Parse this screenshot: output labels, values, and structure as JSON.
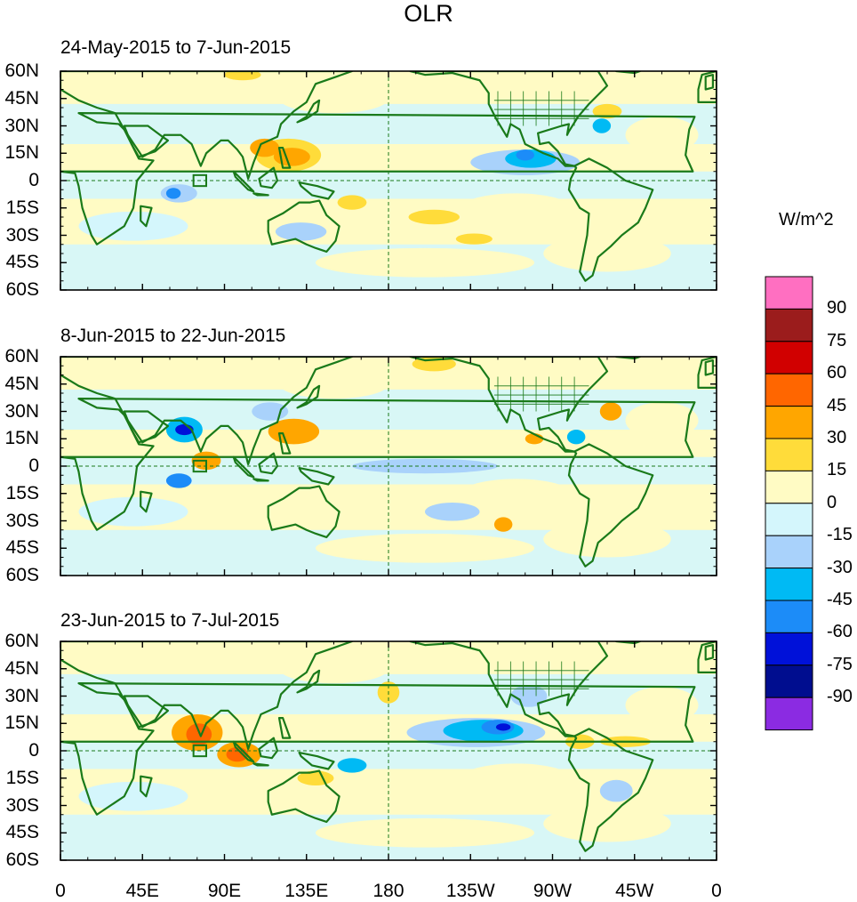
{
  "title": "OLR",
  "panels": [
    {
      "label": "24-May-2015 to 7-Jun-2015"
    },
    {
      "label": "8-Jun-2015 to 22-Jun-2015"
    },
    {
      "label": "23-Jun-2015 to 7-Jul-2015"
    }
  ],
  "lat_labels": [
    "60N",
    "45N",
    "30N",
    "15N",
    "0",
    "15S",
    "30S",
    "45S",
    "60S"
  ],
  "lon_labels": [
    "0",
    "45E",
    "90E",
    "135E",
    "180",
    "135W",
    "90W",
    "45W",
    "0"
  ],
  "colorbar": {
    "title": "W/m^2",
    "levels": [
      "90",
      "75",
      "60",
      "45",
      "30",
      "15",
      "0",
      "-15",
      "-30",
      "-45",
      "-60",
      "-75",
      "-90"
    ],
    "colors": [
      "#ff6fc1",
      "#9b1c1c",
      "#d10000",
      "#ff6600",
      "#ffa600",
      "#ffdc3a",
      "#fffbc4",
      "#d4f6fc",
      "#a9d2fb",
      "#00baf4",
      "#1c8cf8",
      "#0011d9",
      "#000d8f",
      "#8b2be2"
    ]
  },
  "map": {
    "coast_color": "#1a7a1a",
    "lat_range": [
      -60,
      60
    ],
    "lon_range": [
      0,
      360
    ]
  },
  "anomalies": [
    [
      {
        "lon": 125,
        "lat": 14,
        "rx": 18,
        "ry": 9,
        "c": "#ffdc3a"
      },
      {
        "lon": 127,
        "lat": 13,
        "rx": 10,
        "ry": 5,
        "c": "#ffa600"
      },
      {
        "lon": 112,
        "lat": 18,
        "rx": 8,
        "ry": 5,
        "c": "#ffa600"
      },
      {
        "lon": 160,
        "lat": -12,
        "rx": 8,
        "ry": 4,
        "c": "#ffdc3a"
      },
      {
        "lon": 205,
        "lat": -20,
        "rx": 14,
        "ry": 4,
        "c": "#ffdc3a"
      },
      {
        "lon": 227,
        "lat": -32,
        "rx": 10,
        "ry": 3,
        "c": "#ffdc3a"
      },
      {
        "lon": 65,
        "lat": -7,
        "rx": 10,
        "ry": 5,
        "c": "#a9d2fb"
      },
      {
        "lon": 62,
        "lat": -7,
        "rx": 4,
        "ry": 3,
        "c": "#1c8cf8"
      },
      {
        "lon": 255,
        "lat": 10,
        "rx": 30,
        "ry": 7,
        "c": "#a9d2fb"
      },
      {
        "lon": 258,
        "lat": 12,
        "rx": 14,
        "ry": 5,
        "c": "#00baf4"
      },
      {
        "lon": 255,
        "lat": 14,
        "rx": 5,
        "ry": 3,
        "c": "#1c8cf8"
      },
      {
        "lon": 132,
        "lat": -28,
        "rx": 14,
        "ry": 5,
        "c": "#a9d2fb"
      },
      {
        "lon": 297,
        "lat": 30,
        "rx": 5,
        "ry": 4,
        "c": "#00baf4"
      },
      {
        "lon": 300,
        "lat": 38,
        "rx": 8,
        "ry": 4,
        "c": "#ffdc3a"
      },
      {
        "lon": 100,
        "lat": 58,
        "rx": 10,
        "ry": 3,
        "c": "#ffdc3a"
      }
    ],
    [
      {
        "lon": 68,
        "lat": 20,
        "rx": 10,
        "ry": 7,
        "c": "#00baf4"
      },
      {
        "lon": 68,
        "lat": 20,
        "rx": 5,
        "ry": 3,
        "c": "#0011d9"
      },
      {
        "lon": 80,
        "lat": 3,
        "rx": 8,
        "ry": 5,
        "c": "#ffa600"
      },
      {
        "lon": 65,
        "lat": -8,
        "rx": 7,
        "ry": 4,
        "c": "#1c8cf8"
      },
      {
        "lon": 128,
        "lat": 19,
        "rx": 14,
        "ry": 7,
        "c": "#ffa600"
      },
      {
        "lon": 200,
        "lat": 0,
        "rx": 40,
        "ry": 4,
        "c": "#a9d2fb"
      },
      {
        "lon": 215,
        "lat": -25,
        "rx": 15,
        "ry": 5,
        "c": "#a9d2fb"
      },
      {
        "lon": 115,
        "lat": 30,
        "rx": 10,
        "ry": 5,
        "c": "#a9d2fb"
      },
      {
        "lon": 302,
        "lat": 30,
        "rx": 6,
        "ry": 5,
        "c": "#ffa600"
      },
      {
        "lon": 260,
        "lat": 15,
        "rx": 5,
        "ry": 3,
        "c": "#ffa600"
      },
      {
        "lon": 283,
        "lat": 16,
        "rx": 5,
        "ry": 4,
        "c": "#00baf4"
      },
      {
        "lon": 205,
        "lat": 56,
        "rx": 12,
        "ry": 4,
        "c": "#ffdc3a"
      },
      {
        "lon": 243,
        "lat": -32,
        "rx": 5,
        "ry": 4,
        "c": "#ffa600"
      }
    ],
    [
      {
        "lon": 75,
        "lat": 10,
        "rx": 14,
        "ry": 10,
        "c": "#ffa600"
      },
      {
        "lon": 76,
        "lat": 9,
        "rx": 7,
        "ry": 6,
        "c": "#ff6600"
      },
      {
        "lon": 98,
        "lat": -2,
        "rx": 12,
        "ry": 7,
        "c": "#ffa600"
      },
      {
        "lon": 97,
        "lat": -2,
        "rx": 6,
        "ry": 4,
        "c": "#ff6600"
      },
      {
        "lon": 228,
        "lat": 10,
        "rx": 38,
        "ry": 8,
        "c": "#a9d2fb"
      },
      {
        "lon": 232,
        "lat": 11,
        "rx": 22,
        "ry": 6,
        "c": "#00baf4"
      },
      {
        "lon": 240,
        "lat": 13,
        "rx": 9,
        "ry": 4,
        "c": "#1c8cf8"
      },
      {
        "lon": 243,
        "lat": 13,
        "rx": 4,
        "ry": 2,
        "c": "#0011d9"
      },
      {
        "lon": 160,
        "lat": -8,
        "rx": 8,
        "ry": 4,
        "c": "#00baf4"
      },
      {
        "lon": 310,
        "lat": 5,
        "rx": 14,
        "ry": 3,
        "c": "#ffdc3a"
      },
      {
        "lon": 305,
        "lat": -22,
        "rx": 9,
        "ry": 6,
        "c": "#a9d2fb"
      },
      {
        "lon": 285,
        "lat": 5,
        "rx": 8,
        "ry": 4,
        "c": "#ffdc3a"
      },
      {
        "lon": 180,
        "lat": 32,
        "rx": 6,
        "ry": 6,
        "c": "#ffdc3a"
      },
      {
        "lon": 140,
        "lat": -15,
        "rx": 10,
        "ry": 4,
        "c": "#ffdc3a"
      },
      {
        "lon": 257,
        "lat": 30,
        "rx": 10,
        "ry": 6,
        "c": "#a9d2fb"
      }
    ]
  ]
}
